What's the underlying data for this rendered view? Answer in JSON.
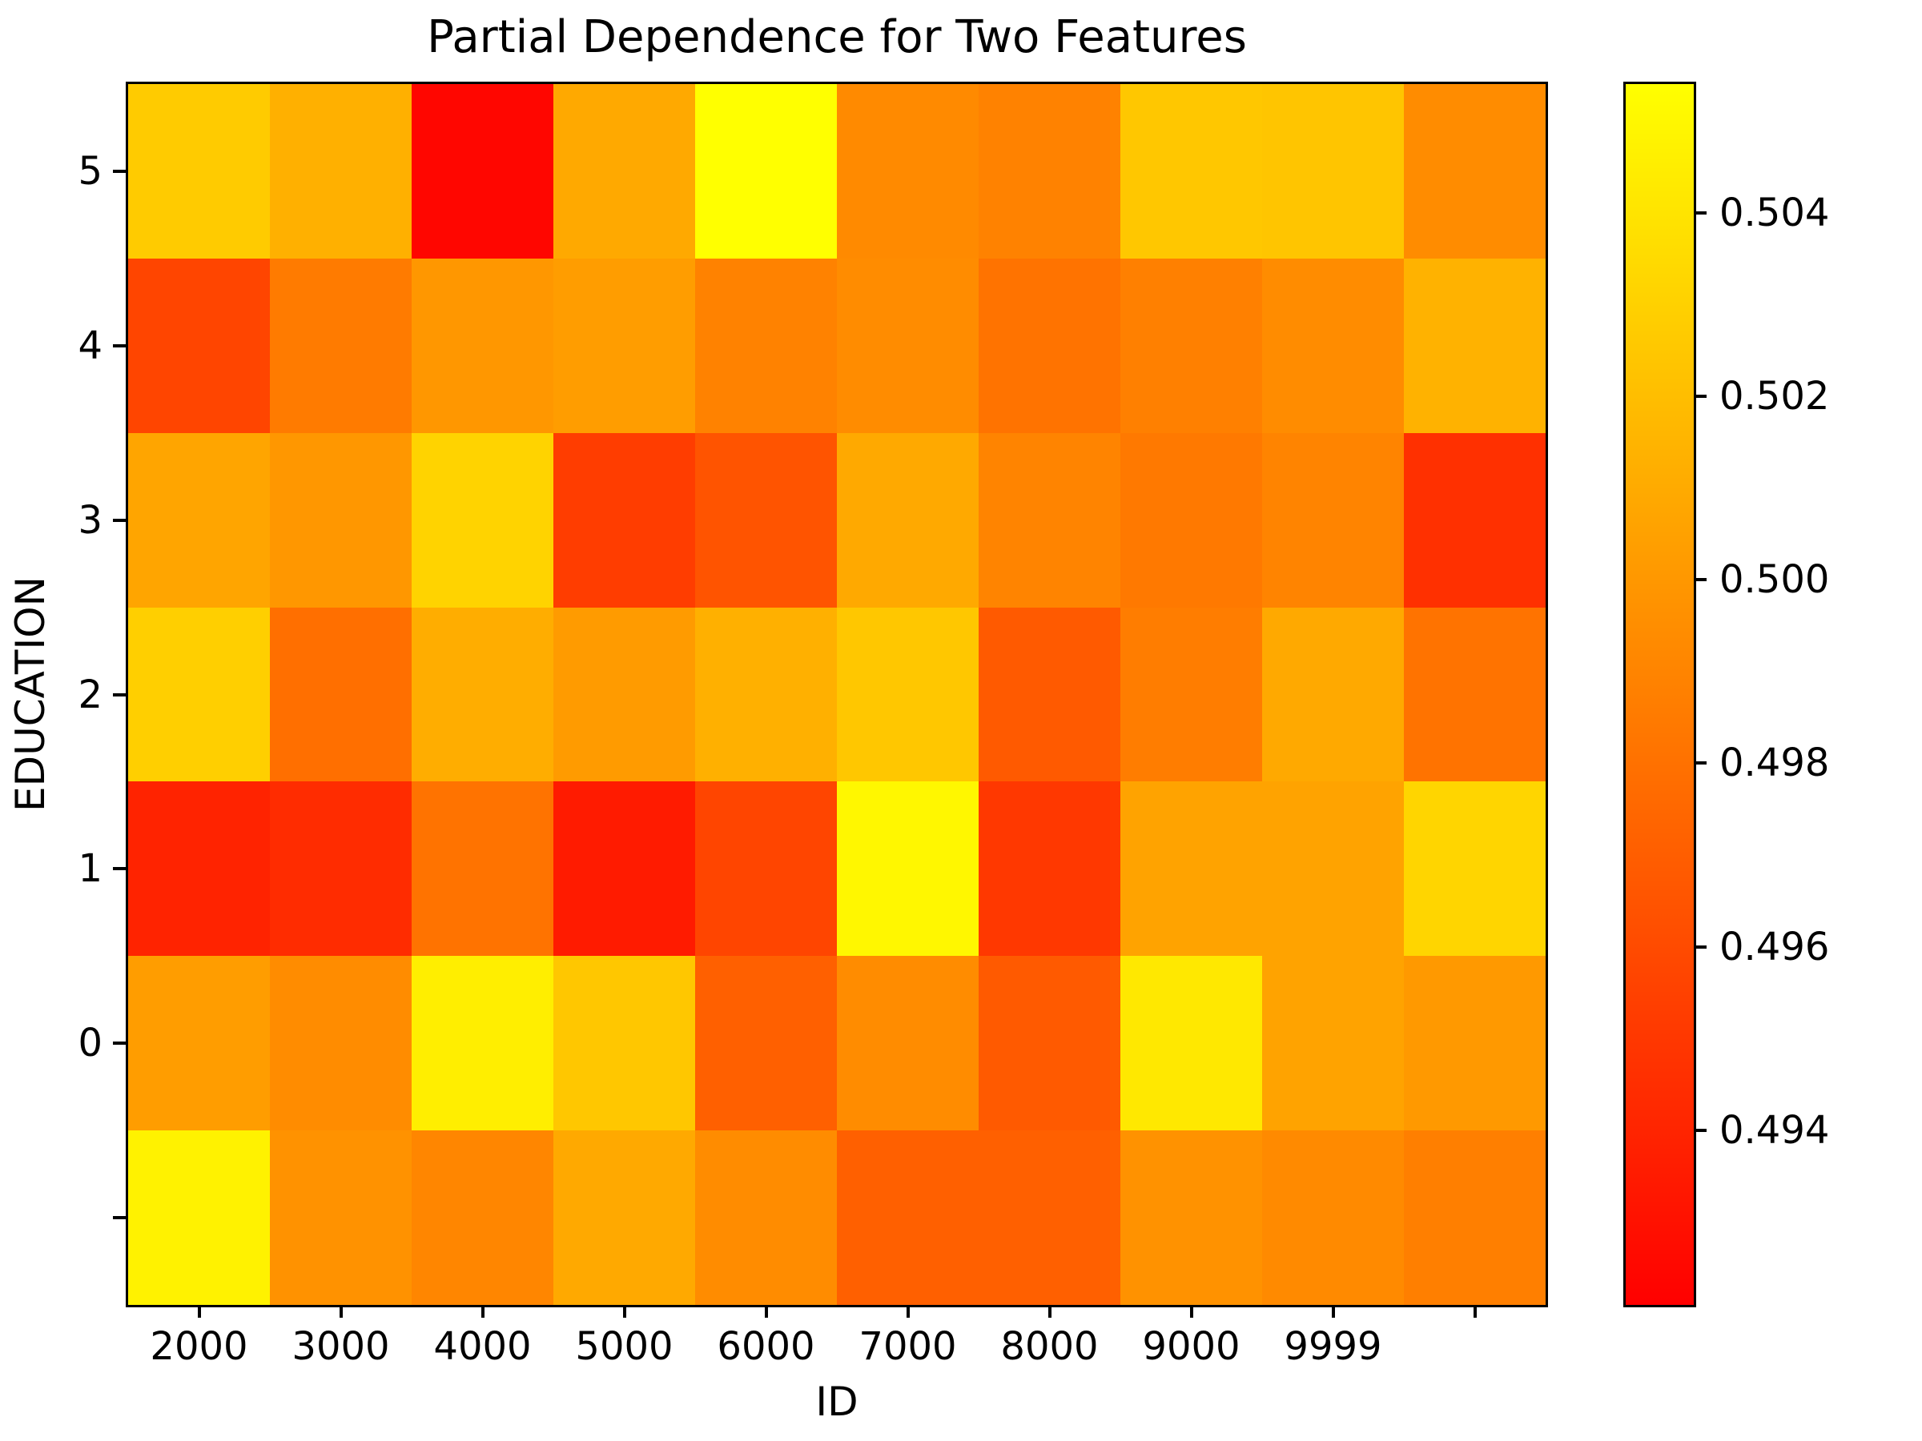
{
  "figure": {
    "background": "#ffffff",
    "text_color": "#000000"
  },
  "chart_data": {
    "type": "heatmap",
    "title": "Partial Dependence for Two Features",
    "xlabel": "ID",
    "ylabel": "EDUCATION",
    "x_tick_labels": [
      "2000",
      "3000",
      "4000",
      "5000",
      "6000",
      "7000",
      "8000",
      "9000",
      "9999",
      ""
    ],
    "y_tick_labels": [
      "5",
      "4",
      "3",
      "2",
      "1",
      "0",
      ""
    ],
    "colormap": "autumn",
    "vmin": 0.4921,
    "vmax": 0.5054,
    "grid_on": false,
    "legend_position": "colorbar-right",
    "rows_top_to_bottom": true,
    "series": [
      {
        "name": "EDUCATION 5",
        "values": [
          0.5027,
          0.5013,
          0.4924,
          0.5009,
          0.5054,
          0.4993,
          0.4989,
          0.5025,
          0.5024,
          0.4994
        ]
      },
      {
        "name": "EDUCATION 4",
        "values": [
          0.4957,
          0.4985,
          0.5,
          0.5003,
          0.4989,
          0.4994,
          0.4981,
          0.4988,
          0.4994,
          0.5014
        ]
      },
      {
        "name": "EDUCATION 3",
        "values": [
          0.5007,
          0.5,
          0.5031,
          0.4953,
          0.4965,
          0.5009,
          0.499,
          0.4984,
          0.499,
          0.4946
        ]
      },
      {
        "name": "EDUCATION 2",
        "values": [
          0.5029,
          0.4979,
          0.5011,
          0.5002,
          0.5013,
          0.5025,
          0.4968,
          0.4986,
          0.5009,
          0.4981
        ]
      },
      {
        "name": "EDUCATION 1",
        "values": [
          0.4939,
          0.4944,
          0.4981,
          0.4935,
          0.4957,
          0.505,
          0.495,
          0.5006,
          0.5006,
          0.5032
        ]
      },
      {
        "name": "EDUCATION 0",
        "values": [
          0.5003,
          0.4994,
          0.5045,
          0.5025,
          0.4971,
          0.4994,
          0.4968,
          0.5042,
          0.5006,
          0.5001
        ]
      },
      {
        "name": "EDUCATION (blank)",
        "values": [
          0.5047,
          0.4997,
          0.4991,
          0.5009,
          0.4994,
          0.4971,
          0.4971,
          0.4997,
          0.4993,
          0.4987
        ]
      }
    ],
    "colorbar": {
      "tick_labels": [
        "0.504",
        "0.502",
        "0.500",
        "0.498",
        "0.496",
        "0.494"
      ],
      "tick_values": [
        0.504,
        0.502,
        0.5,
        0.498,
        0.496,
        0.494
      ],
      "top_color": "#ffff00",
      "bottom_color": "#ff0000"
    }
  }
}
